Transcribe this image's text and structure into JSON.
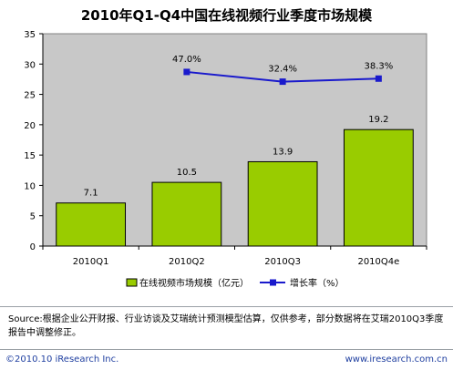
{
  "chart_data": {
    "type": "bar",
    "title": "2010年Q1-Q4中国在线视频行业季度市场规模",
    "categories": [
      "2010Q1",
      "2010Q2",
      "2010Q3",
      "2010Q4e"
    ],
    "series": [
      {
        "name": "在线视频市场规模（亿元）",
        "type": "bar",
        "values": [
          7.1,
          10.5,
          13.9,
          19.2
        ],
        "labels": [
          "7.1",
          "10.5",
          "13.9",
          "19.2"
        ],
        "color": "#99cc00"
      },
      {
        "name": "增长率（%）",
        "type": "line",
        "values": [
          null,
          47.0,
          32.4,
          38.3
        ],
        "labels": [
          "",
          "47.0%",
          "32.4%",
          "38.3%"
        ],
        "color": "#1a1acc"
      }
    ],
    "ylim": [
      0,
      35
    ],
    "yticks": [
      "0",
      "5",
      "10",
      "15",
      "20",
      "25",
      "30",
      "35"
    ],
    "grid": false,
    "legend_position": "bottom",
    "colors": {
      "bar": "#99cc00",
      "bar_edge": "#000000",
      "line": "#1a1acc",
      "plot_background": "#c8c8c8"
    }
  },
  "source_text": "Source:根据企业公开财报、行业访谈及艾瑞统计预测模型估算，仅供参考，部分数据将在艾瑞2010Q3季度报告中调整修正。",
  "copyright_text": "©2010.10 iResearch Inc.",
  "website_text": "www.iresearch.com.cn"
}
